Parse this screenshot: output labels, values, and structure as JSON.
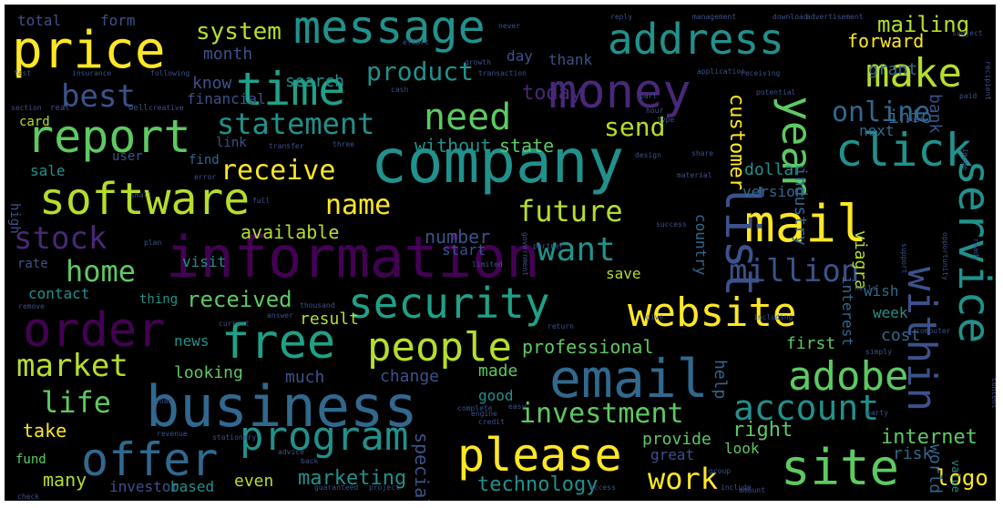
{
  "palette": {
    "background": "#000000",
    "yellow": "#fde725",
    "lime": "#b5de2b",
    "green": "#5ec962",
    "teal": "#21918c",
    "cyan": "#1fa187",
    "blue": "#3b528b",
    "steel": "#31688e",
    "purple": "#440154",
    "indigo": "#482878"
  },
  "words": {
    "company": "company",
    "information": "information",
    "business": "business",
    "email": "email",
    "price": "price",
    "message": "message",
    "address": "address",
    "money": "money",
    "time": "time",
    "make": "make",
    "report": "report",
    "click": "click",
    "software": "software",
    "mail": "mail",
    "security": "security",
    "website": "website",
    "order": "order",
    "free": "free",
    "people": "people",
    "adobe": "adobe",
    "service": "service",
    "please": "please",
    "site": "site",
    "offer": "offer",
    "program": "program",
    "account": "account",
    "list": "list",
    "year": "year",
    "within": "within",
    "need": "need",
    "statement": "statement",
    "online": "online",
    "system": "system",
    "product": "product",
    "best": "best",
    "stock": "stock",
    "want": "want",
    "home": "home",
    "future": "future",
    "name": "name",
    "receive": "receive",
    "million": "million",
    "market": "market",
    "life": "life",
    "investment": "investment",
    "work": "work",
    "send": "send",
    "mailing": "mailing",
    "forward": "forward",
    "today": "today",
    "customer": "customer",
    "industry": "industry",
    "received": "received",
    "marketing": "marketing",
    "internet": "internet",
    "technology": "technology",
    "logo": "logo",
    "professional": "professional",
    "available": "available",
    "right": "right",
    "number": "number",
    "without": "without",
    "state": "state",
    "search": "search",
    "month": "month",
    "know": "know",
    "total": "total",
    "form": "form",
    "card": "card",
    "financial": "financial",
    "thank": "thank",
    "day": "day",
    "grant": "grant",
    "link": "link",
    "sale": "sale",
    "user": "user",
    "find": "find",
    "high": "high",
    "visit": "visit",
    "version": "version",
    "dollar": "dollar",
    "viagra": "viagra",
    "info": "info",
    "bank": "bank",
    "next": "next",
    "country": "country",
    "start": "start",
    "save": "save",
    "contact": "contact",
    "thing": "thing",
    "rate": "rate",
    "result": "result",
    "week": "week",
    "wish": "wish",
    "interest": "interest",
    "cost": "cost",
    "first": "first",
    "news": "news",
    "looking": "looking",
    "much": "much",
    "change": "change",
    "made": "made",
    "help": "help",
    "take": "take",
    "good": "good",
    "provide": "provide",
    "great": "great",
    "look": "look",
    "risk": "risk",
    "world": "world",
    "fund": "fund",
    "many": "many",
    "investor": "investor",
    "based": "based",
    "even": "even",
    "special": "special",
    "value": "value",
    "insurance": "insurance",
    "application": "application",
    "management": "management",
    "download": "download",
    "advertisement": "advertisement",
    "subject": "subject",
    "following": "following",
    "transaction": "transaction",
    "growth": "growth",
    "effort": "effort",
    "reply": "reply",
    "never": "never",
    "creative": "creative",
    "cash": "cash",
    "section": "section",
    "potential": "potential",
    "design": "design",
    "three": "three",
    "transfer": "transfer",
    "share": "share",
    "material": "material",
    "success": "success",
    "including": "including",
    "thousand": "thousand",
    "remove": "remove",
    "government": "government",
    "support": "support",
    "computer": "computer",
    "opportunity": "opportunity",
    "ready": "ready",
    "limited": "limited",
    "partner": "partner",
    "current": "current",
    "answer": "answer",
    "advice": "advice",
    "guaranteed": "guaranteed",
    "project": "project",
    "check": "check",
    "access": "access",
    "include": "include",
    "group": "group",
    "content": "content",
    "engine": "engine",
    "credit": "credit",
    "complete": "complete",
    "easy": "easy",
    "return": "return",
    "party": "party",
    "plan": "plan",
    "stationery": "stationery",
    "loan": "loan",
    "back": "back",
    "revenue": "revenue",
    "error": "error",
    "small": "small",
    "full": "full",
    "fast": "fast",
    "real": "real",
    "well": "well",
    "part": "part",
    "hour": "hour",
    "type": "type",
    "paid": "paid",
    "must": "must",
    "receiving": "receiving",
    "image": "image",
    "recipient": "recipient",
    "hello": "hello",
    "simply": "simply",
    "give": "give",
    "amount": "amount",
    "service_sm": "service",
    "also": "also",
    "people_sm": "people",
    "free_sm": "free",
    "list_sm": "list"
  }
}
